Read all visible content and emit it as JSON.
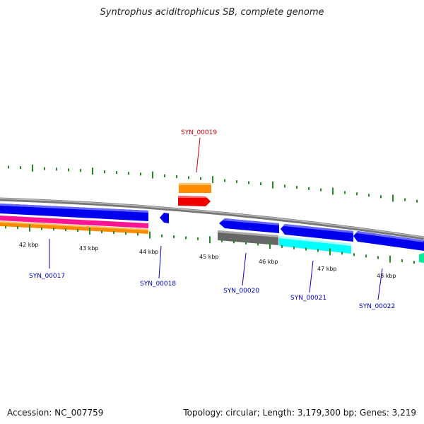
{
  "title": "Syntrophus aciditrophicus SB, complete genome",
  "footer": {
    "accession": "Accession: NC_007759",
    "stats": "Topology: circular; Length: 3,179,300 bp; Genes: 3,219"
  },
  "kbp_labels": [
    "42 kbp",
    "43 kbp",
    "44 kbp",
    "45 kbp",
    "46 kbp",
    "47 kbp",
    "48 kbp"
  ],
  "genes": [
    {
      "id": "SYN_00017",
      "color": "#0000ff"
    },
    {
      "id": "SYN_00018",
      "color": "#0000ff"
    },
    {
      "id": "SYN_00019",
      "color": "#ff0000"
    },
    {
      "id": "SYN_00020",
      "color": "#0000ff"
    },
    {
      "id": "SYN_00021",
      "color": "#0000ff"
    },
    {
      "id": "SYN_00022",
      "color": "#0000ff"
    }
  ],
  "colors": {
    "label_blue": "#0000cc",
    "label_red": "#cc0000",
    "backbone": "#888888",
    "gene_blue": "#0000ee",
    "gene_red": "#ee0000",
    "orange": "#ff8c00",
    "magenta": "#ff1493",
    "gray_feature": "#666666",
    "cyan_feature": "#00ffff",
    "teal_feature": "#00ee99",
    "tick_green": "#228b22"
  }
}
